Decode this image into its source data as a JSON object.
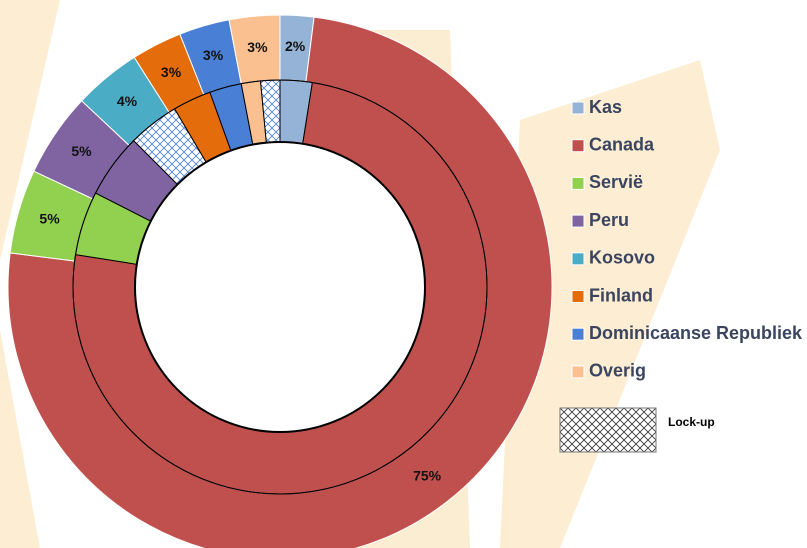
{
  "chart_data": {
    "type": "donut",
    "categories": [
      "Kas",
      "Canada",
      "Servië",
      "Peru",
      "Kosovo",
      "Finland",
      "Dominicaanse Republiek",
      "Overig"
    ],
    "values": [
      2,
      75,
      5,
      5,
      4,
      3,
      3,
      3
    ],
    "value_labels": [
      "2%",
      "75%",
      "5%",
      "5%",
      "4%",
      "3%",
      "3%",
      "3%"
    ],
    "colors": [
      "#95b3d7",
      "#c0504d",
      "#92d050",
      "#8064a2",
      "#4bacc6",
      "#e46c0a",
      "#4a7fd6",
      "#fac090"
    ],
    "inner_values": [
      2.5,
      75,
      5,
      5,
      0,
      3,
      2.5,
      1.5
    ],
    "lockup": {
      "name": "Lock-up",
      "values": [
        0,
        0,
        0,
        4,
        0,
        0,
        0,
        1.5
      ]
    },
    "legend": "right"
  }
}
